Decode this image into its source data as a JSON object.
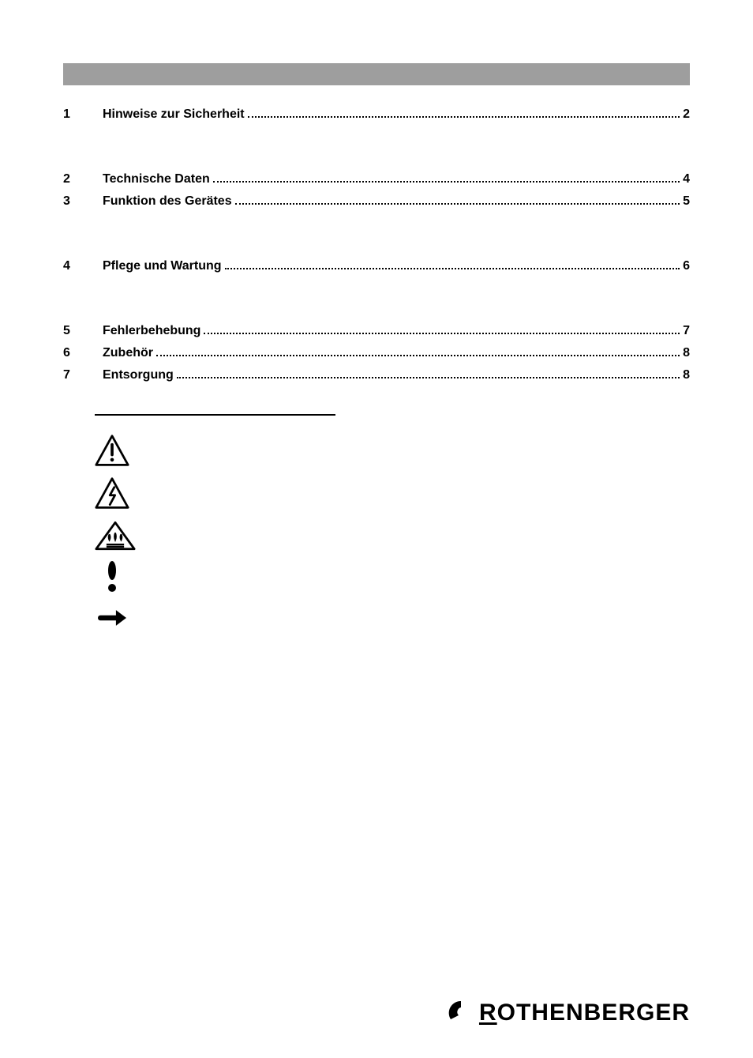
{
  "colors": {
    "bar": "#9e9e9e",
    "text": "#000000",
    "background": "#ffffff"
  },
  "toc": {
    "groups": [
      [
        {
          "num": "1",
          "title": "Hinweise zur Sicherheit",
          "page": "2"
        }
      ],
      [
        {
          "num": "2",
          "title": "Technische Daten",
          "page": "4"
        },
        {
          "num": "3",
          "title": "Funktion des Gerätes",
          "page": "5"
        }
      ],
      [
        {
          "num": "4",
          "title": "Pflege und Wartung",
          "page": "6"
        }
      ],
      [
        {
          "num": "5",
          "title": "Fehlerbehebung",
          "page": "7"
        },
        {
          "num": "6",
          "title": "Zubehör",
          "page": "8"
        },
        {
          "num": "7",
          "title": "Entsorgung",
          "page": "8"
        }
      ]
    ]
  },
  "legend_icons": [
    "warning-triangle-exclamation",
    "warning-triangle-lightning",
    "warning-triangle-hot-surface",
    "exclamation-mark",
    "arrow-right"
  ],
  "footer": {
    "brand": "ROTHENBERGER"
  }
}
